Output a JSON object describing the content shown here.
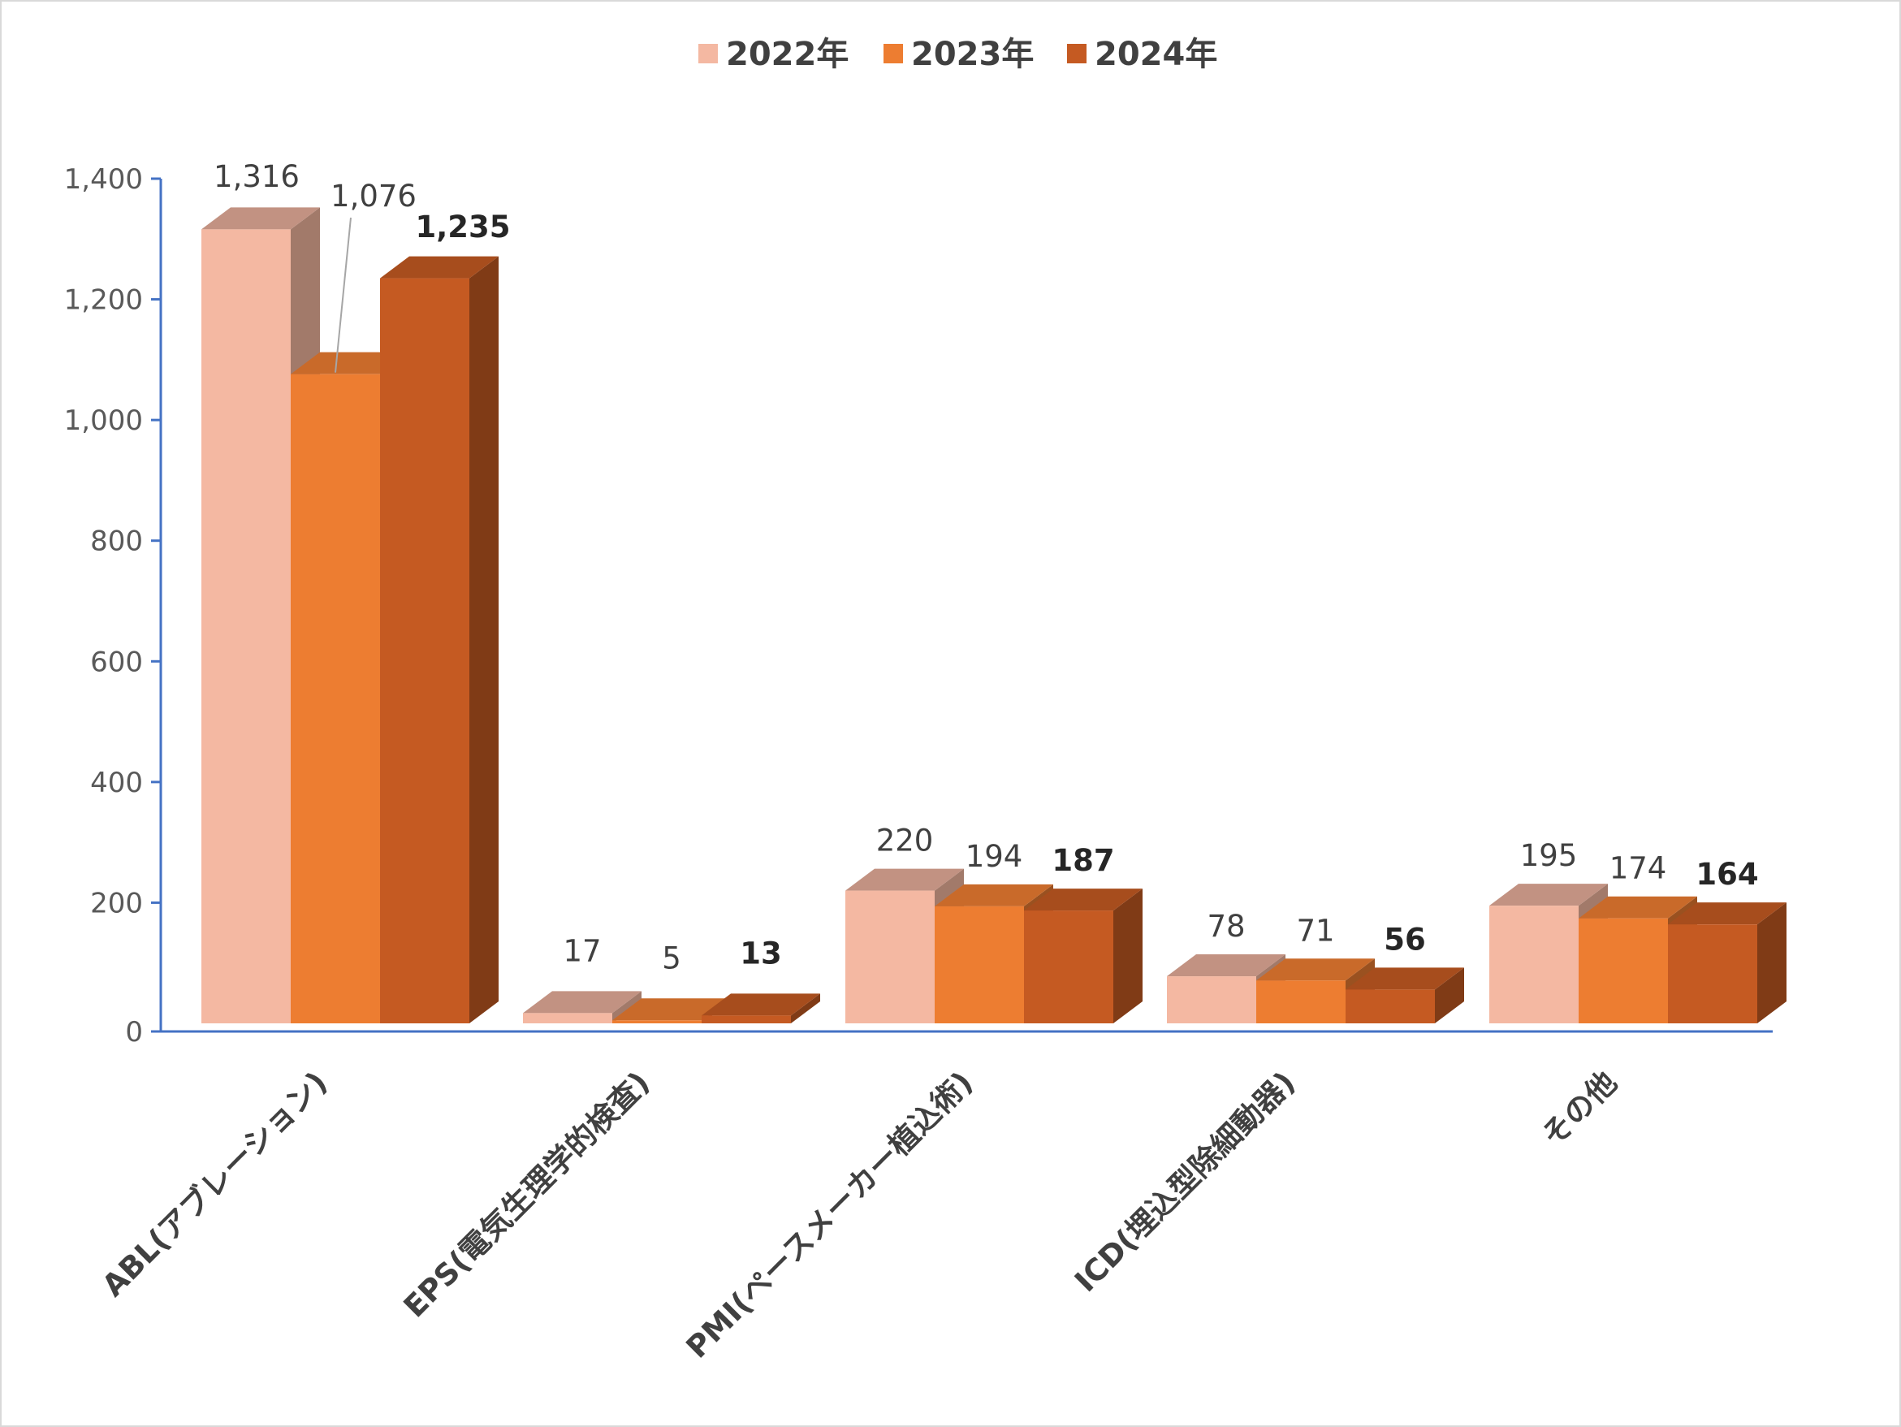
{
  "chart_data": {
    "type": "bar",
    "categories": [
      "ABL(アブレーション)",
      "EPS(電気生理学的検査)",
      "PMI(ペースメーカー植込術)",
      "ICD(埋込型除細動器)",
      "その他"
    ],
    "series": [
      {
        "name": "2022年",
        "values": [
          1316,
          17,
          220,
          78,
          195
        ],
        "labels": [
          "1,316",
          "17",
          "220",
          "78",
          "195"
        ],
        "color": "#f4b8a2"
      },
      {
        "name": "2023年",
        "values": [
          1076,
          5,
          194,
          71,
          174
        ],
        "labels": [
          "1,076",
          "5",
          "194",
          "71",
          "174"
        ],
        "color": "#ed7d31"
      },
      {
        "name": "2024年",
        "values": [
          1235,
          13,
          187,
          56,
          164
        ],
        "labels": [
          "1,235",
          "13",
          "187",
          "56",
          "164"
        ],
        "color": "#c55a22"
      }
    ],
    "ylim": [
      0,
      1400
    ],
    "yticks": [
      "0",
      "200",
      "400",
      "600",
      "800",
      "1,000",
      "1,200",
      "1,400"
    ],
    "legend_position": "top",
    "bar_style": "3d-clustered",
    "axis_color": "#4472c4"
  }
}
